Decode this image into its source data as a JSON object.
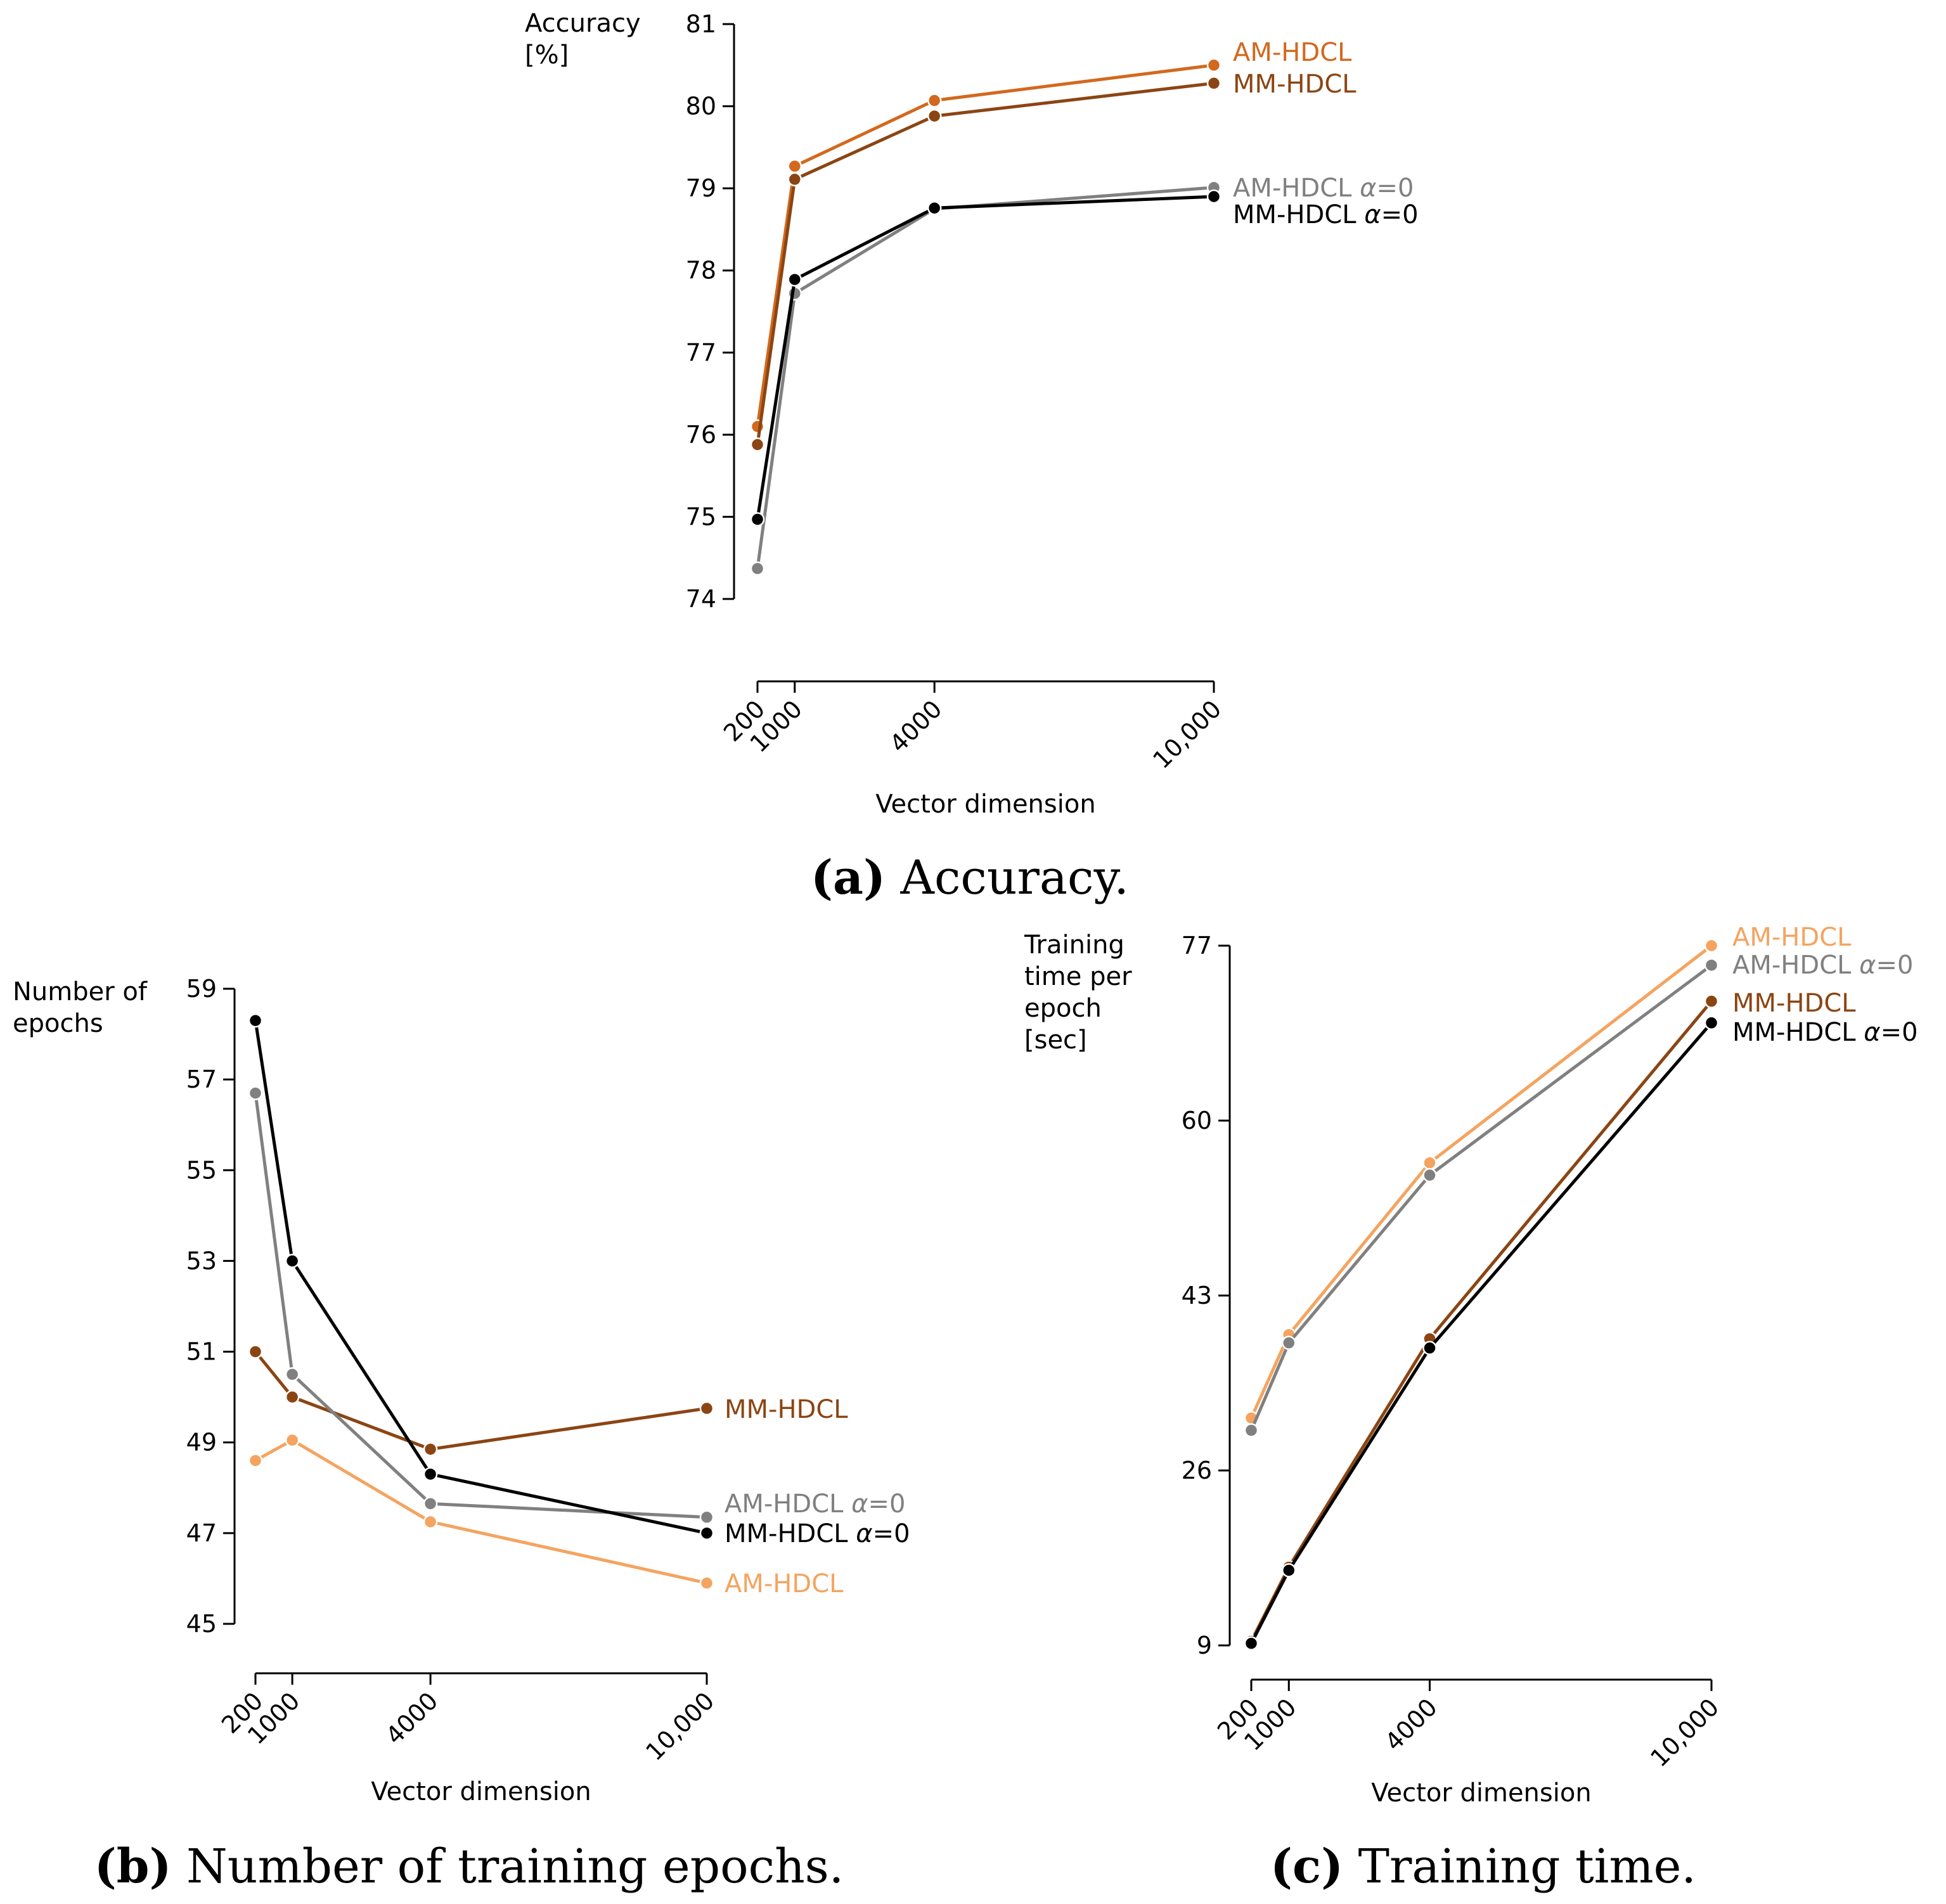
{
  "colors": {
    "am": "#D2691E",
    "mm": "#8B4513",
    "am0": "#808080",
    "mm0": "#000000",
    "am_light": "#F4A460"
  },
  "chart_data": [
    {
      "id": "a",
      "type": "line",
      "ylabel": [
        "Accuracy",
        "[%]"
      ],
      "xlabel": "Vector dimension",
      "x": [
        200,
        1000,
        4000,
        10000
      ],
      "xticks": [
        "200",
        "1000",
        "4000",
        "10,000"
      ],
      "ylim": [
        74,
        81
      ],
      "yticks": [
        "74",
        "75",
        "76",
        "77",
        "78",
        "79",
        "80",
        "81"
      ],
      "series": [
        {
          "name": "AM-HDCL",
          "color": "am",
          "values": [
            76.1,
            79.27,
            80.07,
            80.5
          ]
        },
        {
          "name": "MM-HDCL",
          "color": "mm",
          "values": [
            75.88,
            79.11,
            79.88,
            80.28
          ]
        },
        {
          "name": "AM-HDCL α=0",
          "color": "am0",
          "values": [
            74.37,
            77.72,
            78.75,
            79.01
          ]
        },
        {
          "name": "MM-HDCL α=0",
          "color": "mm0",
          "values": [
            74.97,
            77.89,
            78.76,
            78.9
          ]
        }
      ],
      "caption_letter": "(a)",
      "caption_text": "Accuracy."
    },
    {
      "id": "b",
      "type": "line",
      "ylabel": [
        "Number of",
        "epochs"
      ],
      "xlabel": "Vector dimension",
      "x": [
        200,
        1000,
        4000,
        10000
      ],
      "xticks": [
        "200",
        "1000",
        "4000",
        "10,000"
      ],
      "ylim": [
        45,
        59
      ],
      "yticks": [
        "45",
        "47",
        "49",
        "51",
        "53",
        "55",
        "57",
        "59"
      ],
      "series": [
        {
          "name": "MM-HDCL",
          "color": "mm",
          "values": [
            51.0,
            50.0,
            48.85,
            49.75
          ]
        },
        {
          "name": "AM-HDCL α=0",
          "color": "am0",
          "values": [
            56.7,
            50.5,
            47.65,
            47.35
          ]
        },
        {
          "name": "MM-HDCL α=0",
          "color": "mm0",
          "values": [
            58.3,
            53.0,
            48.3,
            47.0
          ]
        },
        {
          "name": "AM-HDCL",
          "color": "am_light",
          "values": [
            48.6,
            49.05,
            47.25,
            45.9
          ]
        }
      ],
      "caption_letter": "(b)",
      "caption_text": "Number of training epochs."
    },
    {
      "id": "c",
      "type": "line",
      "ylabel": [
        "Training",
        "time per",
        "epoch",
        "[sec]"
      ],
      "xlabel": "Vector dimension",
      "x": [
        200,
        1000,
        4000,
        10000
      ],
      "xticks": [
        "200",
        "1000",
        "4000",
        "10,000"
      ],
      "ylim": [
        9,
        77
      ],
      "yticks": [
        "9",
        "26",
        "43",
        "60",
        "77"
      ],
      "series": [
        {
          "name": "AM-HDCL",
          "color": "am_light",
          "values": [
            31.1,
            39.2,
            55.9,
            77.0
          ]
        },
        {
          "name": "AM-HDCL α=0",
          "color": "am0",
          "values": [
            29.9,
            38.4,
            54.7,
            75.1
          ]
        },
        {
          "name": "MM-HDCL",
          "color": "mm",
          "values": [
            9.4,
            16.6,
            38.8,
            71.6
          ]
        },
        {
          "name": "MM-HDCL α=0",
          "color": "mm0",
          "values": [
            9.2,
            16.3,
            37.9,
            69.5
          ]
        }
      ],
      "caption_letter": "(c)",
      "caption_text": "Training time."
    }
  ]
}
